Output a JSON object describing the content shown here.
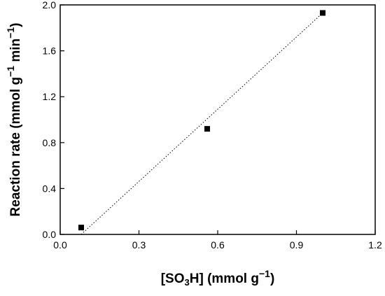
{
  "chart_data": {
    "type": "scatter",
    "title": "",
    "xlabel": {
      "prefix": "[SO",
      "subscript": "3",
      "suffix": "H]",
      "unit_prefix": " (mmol g",
      "unit_superscript": "−1",
      "unit_suffix": ")"
    },
    "ylabel": {
      "prefix": "Reaction rate (mmol g",
      "superscript_1": "−1",
      "middle": " min",
      "superscript_2": "−1",
      "suffix": ")"
    },
    "xlim": [
      0.0,
      1.2
    ],
    "ylim": [
      0.0,
      2.0
    ],
    "xticks": [
      "0.0",
      "0.3",
      "0.6",
      "0.9",
      "1.2"
    ],
    "yticks": [
      "0.0",
      "0.4",
      "0.8",
      "1.2",
      "1.6",
      "2.0"
    ],
    "grid": false,
    "series": [
      {
        "x": [
          0.08,
          0.56,
          1.0
        ],
        "y": [
          0.06,
          0.92,
          1.93
        ],
        "marker": "square",
        "color": "#000000"
      }
    ],
    "fit_line": {
      "style": "dotted",
      "color": "#000000",
      "x": [
        0.08,
        1.0
      ],
      "y": [
        0.0,
        1.93
      ]
    }
  }
}
